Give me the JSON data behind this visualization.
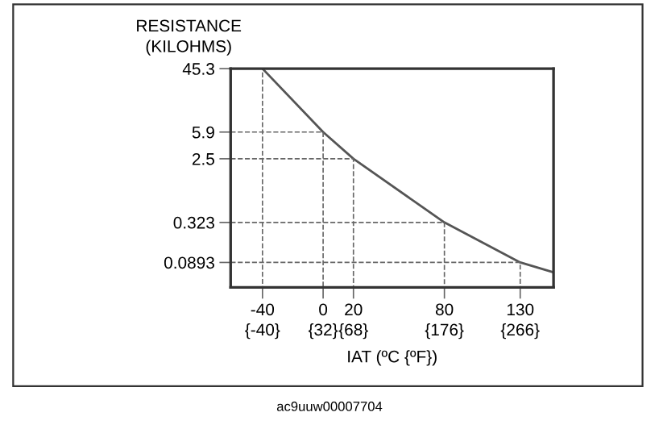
{
  "chart_data": {
    "type": "line",
    "ylabel": "RESISTANCE\n(KILOHMS)",
    "xlabel": "IAT (ºC {ºF})",
    "log": "y",
    "xlim": [
      -61,
      152
    ],
    "ylim": [
      0.04,
      45.3
    ],
    "xticks": [
      -40,
      0,
      20,
      80,
      130
    ],
    "x2lim": [
      -77.8,
      305.6
    ],
    "x2ticks": [
      {
        "value": -40,
        "label": "{-40}"
      },
      {
        "value": 32,
        "label": "{32}"
      },
      {
        "value": 68,
        "label": "{68}"
      },
      {
        "value": 176,
        "label": "{176}"
      },
      {
        "value": 266,
        "label": "{266}"
      }
    ],
    "yticks": [
      45.3,
      5.9,
      2.5,
      0.323,
      0.0893
    ],
    "series": [
      {
        "color": "#555555",
        "x": [
          -40,
          0,
          20,
          80,
          130,
          152
        ],
        "values": [
          45.3,
          5.9,
          2.5,
          0.323,
          0.0893,
          0.065
        ]
      },
      {
        "color": "#666666",
        "line_style": "dashed",
        "x": [
          -61,
          -40,
          -40
        ],
        "values": [
          45.3,
          45.3,
          0.04
        ]
      },
      {
        "color": "#666666",
        "line_style": "dashed",
        "x": [
          -61,
          0,
          0
        ],
        "values": [
          5.9,
          5.9,
          0.04
        ]
      },
      {
        "color": "#666666",
        "line_style": "dashed",
        "x": [
          -61,
          20,
          20
        ],
        "values": [
          2.5,
          2.5,
          0.04
        ]
      },
      {
        "color": "#666666",
        "line_style": "dashed",
        "x": [
          -61,
          80,
          80
        ],
        "values": [
          0.323,
          0.323,
          0.04
        ]
      },
      {
        "color": "#666666",
        "line_style": "dashed",
        "x": [
          -61,
          130,
          130
        ],
        "values": [
          0.0893,
          0.0893,
          0.04
        ]
      }
    ],
    "grid": false,
    "legend": false,
    "line_style": "solid",
    "marker": "none",
    "annotations": [
      "ac9uuw00007704"
    ]
  }
}
